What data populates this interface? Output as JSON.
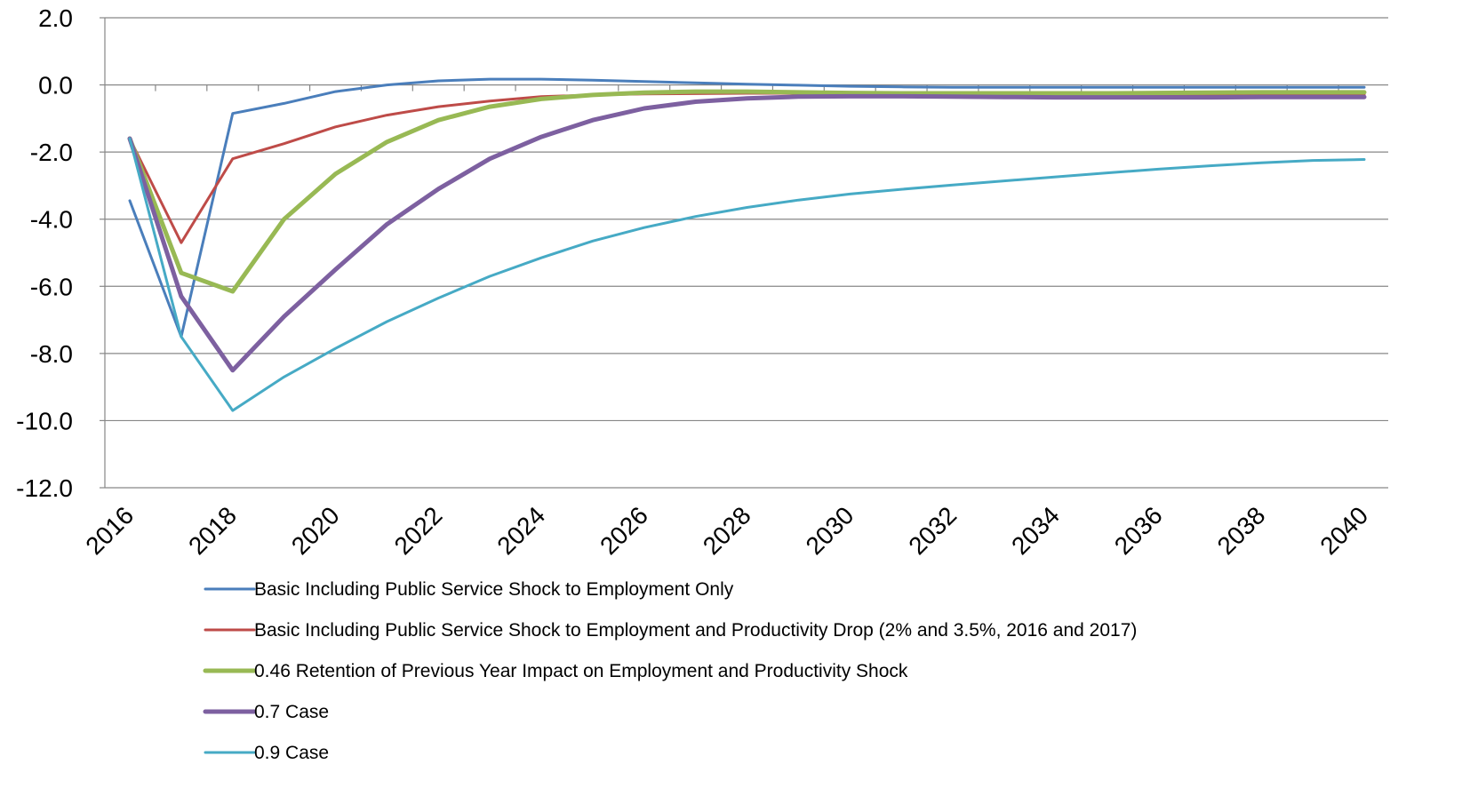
{
  "chart_data": {
    "type": "line",
    "title": "",
    "xlabel": "",
    "ylabel": "",
    "ylim": [
      -12,
      2
    ],
    "yticks": [
      2,
      0,
      -2,
      -4,
      -6,
      -8,
      -10,
      -12
    ],
    "ytick_labels": [
      "2.0",
      "0.0",
      "-2.0",
      "-4.0",
      "-6.0",
      "-8.0",
      "-10.0",
      "-12.0"
    ],
    "x": [
      2016,
      2017,
      2018,
      2019,
      2020,
      2021,
      2022,
      2023,
      2024,
      2025,
      2026,
      2027,
      2028,
      2029,
      2030,
      2031,
      2032,
      2033,
      2034,
      2035,
      2036,
      2037,
      2038,
      2039,
      2040
    ],
    "xtick_labels": [
      "2016",
      "2018",
      "2020",
      "2022",
      "2024",
      "2026",
      "2028",
      "2030",
      "2032",
      "2034",
      "2036",
      "2038",
      "2040"
    ],
    "grid": true,
    "legend_position": "bottom",
    "series": [
      {
        "name": "Basic Including Public Service Shock  to Employment Only",
        "color": "#4a7ebb",
        "width": 3,
        "values": [
          -3.45,
          -7.5,
          -0.85,
          -0.55,
          -0.2,
          0.0,
          0.12,
          0.17,
          0.17,
          0.14,
          0.1,
          0.06,
          0.02,
          -0.01,
          -0.04,
          -0.06,
          -0.07,
          -0.07,
          -0.07,
          -0.07,
          -0.07,
          -0.07,
          -0.07,
          -0.07,
          -0.07
        ]
      },
      {
        "name": "Basic Including Public Service Shock  to Employment and Productivity Drop (2% and 3.5%, 2016 and 2017)",
        "color": "#be4b48",
        "width": 3,
        "values": [
          -1.6,
          -4.7,
          -2.2,
          -1.75,
          -1.25,
          -0.9,
          -0.65,
          -0.48,
          -0.35,
          -0.3,
          -0.27,
          -0.26,
          -0.25,
          -0.25,
          -0.25,
          -0.26,
          -0.27,
          -0.27,
          -0.28,
          -0.28,
          -0.28,
          -0.28,
          -0.28,
          -0.28,
          -0.28
        ]
      },
      {
        "name": "0.46 Retention of Previous Year Impact on Employment and Productivity Shock",
        "color": "#98b954",
        "width": 5,
        "values": [
          -1.6,
          -5.6,
          -6.15,
          -4.0,
          -2.65,
          -1.7,
          -1.05,
          -0.65,
          -0.42,
          -0.3,
          -0.23,
          -0.2,
          -0.2,
          -0.22,
          -0.24,
          -0.25,
          -0.25,
          -0.25,
          -0.25,
          -0.25,
          -0.24,
          -0.23,
          -0.22,
          -0.22,
          -0.22
        ]
      },
      {
        "name": "0.7 Case",
        "color": "#7d60a0",
        "width": 5,
        "values": [
          -1.6,
          -6.3,
          -8.5,
          -6.9,
          -5.5,
          -4.15,
          -3.1,
          -2.2,
          -1.55,
          -1.05,
          -0.7,
          -0.5,
          -0.4,
          -0.35,
          -0.34,
          -0.34,
          -0.35,
          -0.36,
          -0.37,
          -0.37,
          -0.37,
          -0.37,
          -0.36,
          -0.36,
          -0.36
        ]
      },
      {
        "name": "0.9 Case",
        "color": "#46aac5",
        "width": 3,
        "values": [
          -1.6,
          -7.5,
          -9.7,
          -8.7,
          -7.85,
          -7.05,
          -6.35,
          -5.7,
          -5.15,
          -4.65,
          -4.25,
          -3.92,
          -3.65,
          -3.43,
          -3.25,
          -3.11,
          -2.98,
          -2.86,
          -2.74,
          -2.62,
          -2.51,
          -2.41,
          -2.32,
          -2.25,
          -2.22
        ]
      }
    ]
  }
}
